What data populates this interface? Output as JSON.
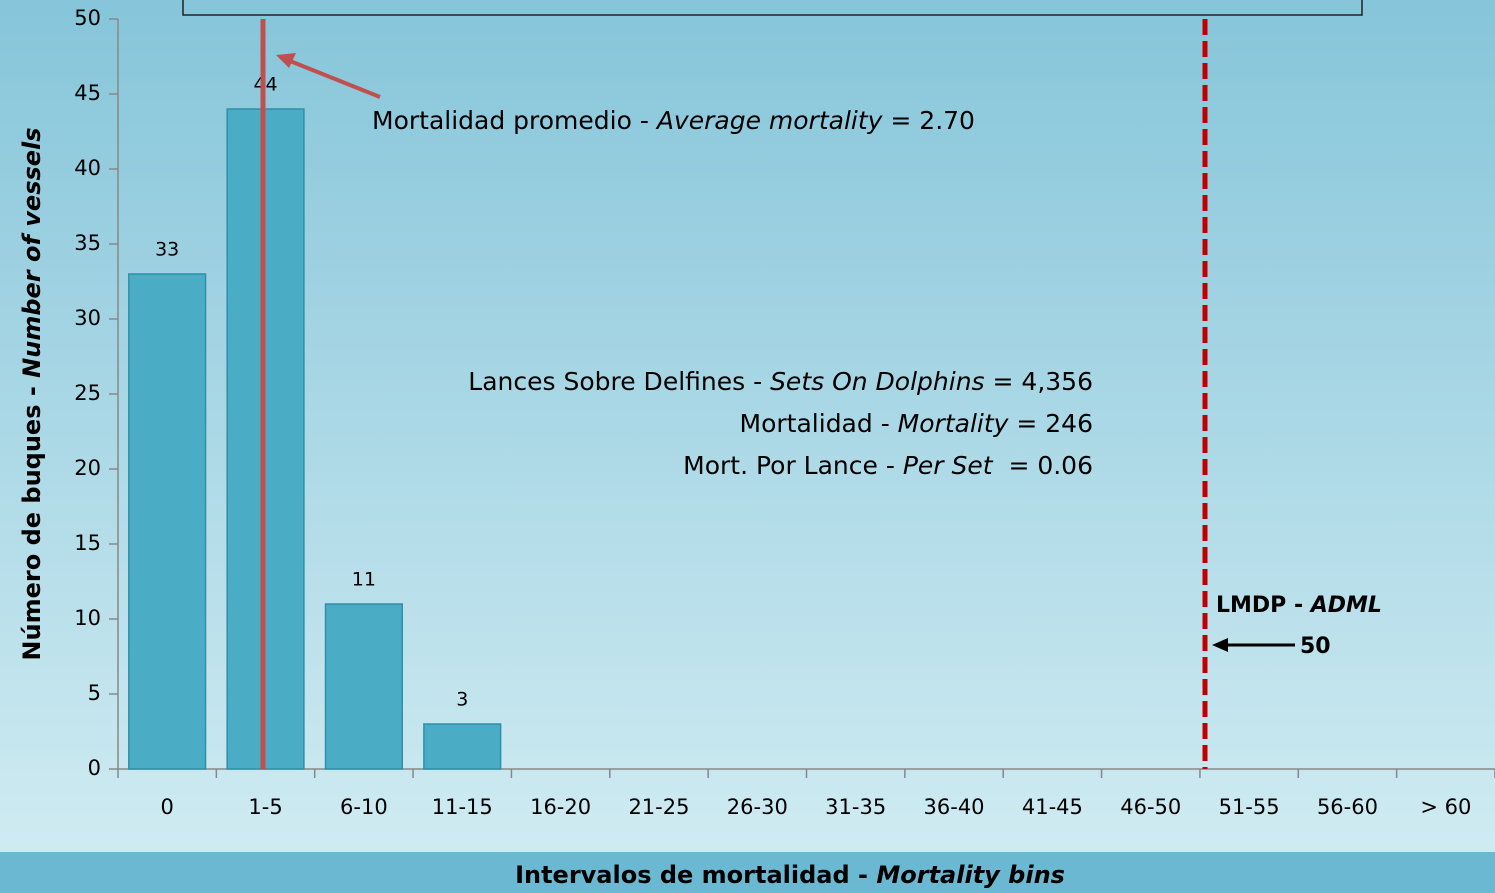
{
  "chart_data": {
    "type": "bar",
    "categories": [
      "0",
      "1-5",
      "6-10",
      "11-15",
      "16-20",
      "21-25",
      "26-30",
      "31-35",
      "36-40",
      "41-45",
      "46-50",
      "51-55",
      "56-60",
      "> 60"
    ],
    "values": [
      33,
      44,
      11,
      3,
      0,
      0,
      0,
      0,
      0,
      0,
      0,
      0,
      0,
      0
    ],
    "color": "#4bacc6",
    "ylim": [
      0,
      50
    ],
    "yticks": [
      0,
      5,
      10,
      15,
      20,
      25,
      30,
      35,
      40,
      45,
      50
    ],
    "x_label": [
      "Intervalos de mortalidad - ",
      "Mortality bins"
    ],
    "y_label": [
      "Número de buques - ",
      "Number of vessels"
    ],
    "average_note": [
      "Mortalidad promedio - ",
      "Average mortality",
      " = 2.70"
    ],
    "stats": [
      [
        "Lances Sobre Delfines - ",
        "Sets On Dolphins",
        " = 4,356"
      ],
      [
        "Mortalidad - ",
        "Mortality",
        " = 246"
      ],
      [
        "Mort. Por Lance - ",
        "Per Set",
        "  = 0.06"
      ]
    ],
    "limit": {
      "label": [
        "LMDP - ",
        "ADML"
      ],
      "value": 50
    }
  }
}
